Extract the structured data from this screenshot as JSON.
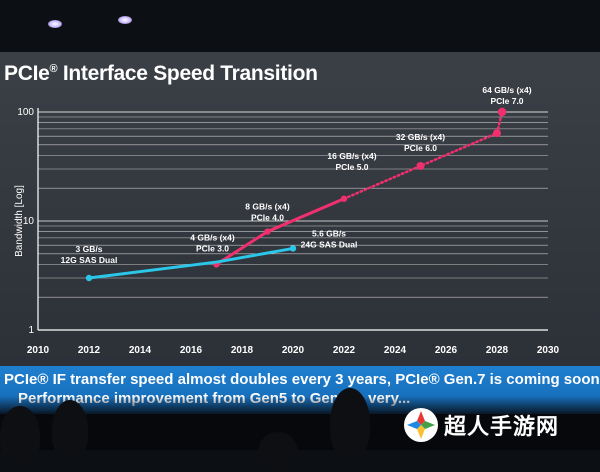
{
  "slide": {
    "title": "PCIe",
    "title_reg": "®",
    "title_rest": " Interface Speed Transition",
    "banner_line1": "PCIe® IF transfer speed almost doubles every 3 years, PCIe® Gen.7 is coming soon.",
    "banner_line2": "Performance improvement from Gen5 to Gen6 is very..."
  },
  "logo": {
    "text": "超人手游网"
  },
  "colors": {
    "pcie": "#f0306e",
    "sas": "#2bc6e8",
    "grid": "#d8d8d8",
    "banner": "#1a74c4"
  },
  "chart_data": {
    "type": "line",
    "ylabel": "Bandwidth [Log]",
    "yscale": "log",
    "ylim": [
      1,
      100
    ],
    "xlim": [
      2010,
      2030
    ],
    "xticks": [
      2010,
      2012,
      2014,
      2016,
      2018,
      2020,
      2022,
      2024,
      2026,
      2028,
      2030
    ],
    "yticks": [
      1,
      10,
      100
    ],
    "series": [
      {
        "key": "pcie",
        "color": "#f0306e",
        "points": [
          [
            2017,
            4
          ],
          [
            2019,
            8
          ],
          [
            2022,
            16
          ]
        ],
        "projected": [
          [
            2022,
            16
          ],
          [
            2025,
            32
          ],
          [
            2028,
            64
          ]
        ],
        "projected_end": [
          2028.2,
          100
        ]
      },
      {
        "key": "sas",
        "color": "#2bc6e8",
        "points": [
          [
            2012,
            3
          ],
          [
            2017,
            4.2
          ],
          [
            2020,
            5.6
          ]
        ]
      }
    ],
    "annotations": [
      {
        "line1": "3 GB/s",
        "line2": "12G SAS Dual",
        "x": 2012,
        "y": 3
      },
      {
        "line1": "4 GB/s (x4)",
        "line2": "PCIe 3.0",
        "x": 2017,
        "y": 4
      },
      {
        "line1": "5.6 GB/s",
        "line2": "24G SAS Dual",
        "x": 2020,
        "y": 5.6
      },
      {
        "line1": "8 GB/s (x4)",
        "line2": "PCIe 4.0",
        "x": 2019,
        "y": 8
      },
      {
        "line1": "16 GB/s (x4)",
        "line2": "PCIe 5.0",
        "x": 2022,
        "y": 16
      },
      {
        "line1": "32 GB/s (x4)",
        "line2": "PCIe 6.0",
        "x": 2025,
        "y": 32
      },
      {
        "line1": "64 GB/s (x4)",
        "line2": "PCIe 7.0",
        "x": 2028,
        "y": 64
      }
    ]
  }
}
